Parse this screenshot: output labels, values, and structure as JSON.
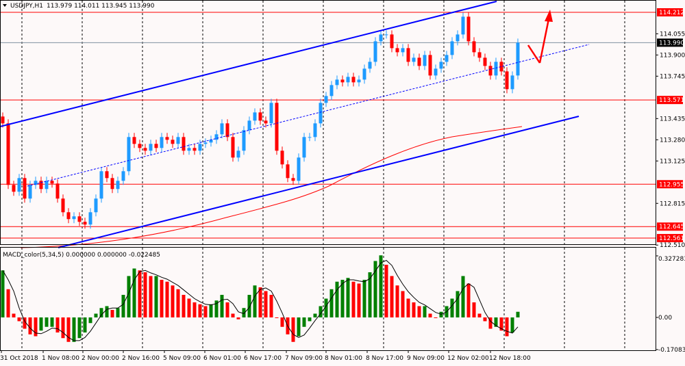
{
  "header": {
    "symbol": "USDJPY,H1",
    "ohlc": "113.979 114.011 113.945 113.990"
  },
  "macd_header": {
    "label": "MACD_color(5,34,5) 0.000000 0.000000 -0.022485"
  },
  "colors": {
    "background": "#fdf9f9",
    "bull": "#1e9bff",
    "bear": "#ff0000",
    "channel": "#0000ff",
    "level": "#ff0000",
    "ma": "#ff0000",
    "macd_up": "#008000",
    "macd_down": "#ff0000",
    "signal": "#000000"
  },
  "chart_data": [
    {
      "type": "candlestick",
      "title": "USDJPY,H1",
      "ylim": [
        112.51,
        114.3
      ],
      "price_axis_ticks": [
        "114.055",
        "113.900",
        "113.745",
        "113.435",
        "113.280",
        "113.125",
        "112.815",
        "112.510"
      ],
      "time_axis_ticks": [
        "31 Oct 2018",
        "1 Nov 08:00",
        "2 Nov 00:00",
        "2 Nov 16:00",
        "5 Nov 09:00",
        "6 Nov 01:00",
        "6 Nov 17:00",
        "7 Nov 09:00",
        "8 Nov 01:00",
        "8 Nov 17:00",
        "9 Nov 09:00",
        "12 Nov 02:00",
        "12 Nov 18:00"
      ],
      "horizontal_levels": [
        {
          "price": "114.212"
        },
        {
          "price": "113.571"
        },
        {
          "price": "112.955"
        },
        {
          "price": "112.645"
        },
        {
          "price": "112.561"
        }
      ],
      "current_price": "113.990",
      "closes": [
        113.4,
        112.95,
        112.9,
        113.0,
        112.85,
        112.95,
        112.98,
        112.92,
        112.98,
        112.96,
        112.85,
        112.75,
        112.7,
        112.72,
        112.68,
        112.66,
        112.75,
        112.85,
        113.05,
        113.0,
        112.92,
        112.98,
        113.05,
        113.3,
        113.25,
        113.22,
        113.2,
        113.25,
        113.22,
        113.3,
        113.28,
        113.25,
        113.3,
        113.2,
        113.22,
        113.2,
        113.25,
        113.26,
        113.28,
        113.32,
        113.4,
        113.3,
        113.15,
        113.2,
        113.35,
        113.42,
        113.48,
        113.42,
        113.4,
        113.55,
        113.2,
        113.1,
        113.0,
        112.98,
        113.15,
        113.3,
        113.3,
        113.4,
        113.55,
        113.6,
        113.68,
        113.72,
        113.7,
        113.74,
        113.7,
        113.72,
        113.8,
        113.85,
        114.0,
        114.05,
        114.05,
        113.95,
        113.92,
        113.95,
        113.85,
        113.88,
        113.82,
        113.9,
        113.75,
        113.8,
        113.85,
        113.9,
        114.0,
        114.05,
        114.18,
        114.0,
        113.92,
        113.88,
        113.82,
        113.75,
        113.85,
        113.78,
        113.65,
        113.75,
        113.99
      ]
    },
    {
      "type": "bar",
      "title": "MACD_color(5,34,5)",
      "ylim": [
        -0.170834,
        0.327283
      ],
      "axis_ticks": [
        "0.327283",
        "0.00",
        "-0.170834"
      ],
      "histogram": [
        0.25,
        0.15,
        0.02,
        -0.02,
        -0.06,
        -0.09,
        -0.1,
        -0.07,
        -0.05,
        -0.05,
        -0.08,
        -0.11,
        -0.13,
        -0.13,
        -0.11,
        -0.08,
        -0.03,
        0.02,
        0.05,
        0.06,
        0.04,
        0.05,
        0.12,
        0.22,
        0.26,
        0.25,
        0.24,
        0.22,
        0.22,
        0.2,
        0.19,
        0.17,
        0.15,
        0.12,
        0.1,
        0.08,
        0.07,
        0.06,
        0.07,
        0.09,
        0.12,
        0.08,
        0.02,
        -0.01,
        0.05,
        0.12,
        0.17,
        0.16,
        0.14,
        0.12,
        0.0,
        -0.05,
        -0.09,
        -0.13,
        -0.1,
        -0.05,
        -0.02,
        0.02,
        0.06,
        0.1,
        0.15,
        0.19,
        0.2,
        0.21,
        0.19,
        0.18,
        0.2,
        0.24,
        0.3,
        0.33,
        0.28,
        0.22,
        0.17,
        0.14,
        0.1,
        0.08,
        0.06,
        0.06,
        0.02,
        0.0,
        0.03,
        0.06,
        0.1,
        0.14,
        0.22,
        0.18,
        0.08,
        0.02,
        -0.02,
        -0.06,
        -0.05,
        -0.07,
        -0.1,
        -0.08,
        0.03
      ]
    }
  ]
}
